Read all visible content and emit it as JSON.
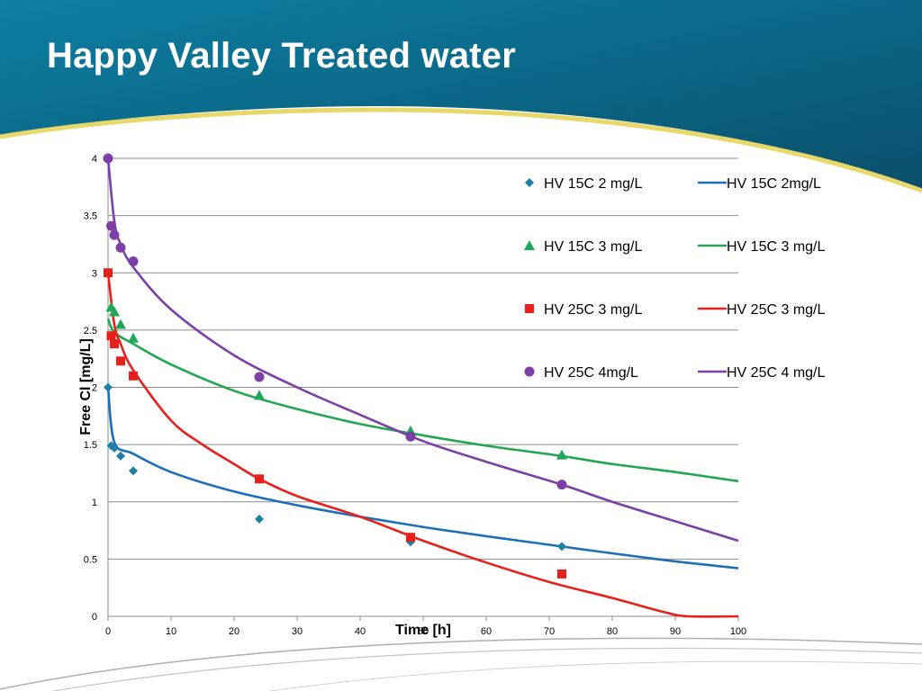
{
  "slide": {
    "title": "Happy Valley Treated water"
  },
  "theme": {
    "header_dark": "#0a4f6b",
    "header_mid": "#0d7fa3",
    "accent_yellow": "#e8d86a",
    "grid_color": "#8c8c8c"
  },
  "chart_data": {
    "type": "scatter",
    "xlabel": "Time [h]",
    "ylabel": "Free Cl [mg/L]",
    "xlim": [
      0,
      100
    ],
    "ylim": [
      0,
      4
    ],
    "xticks": [
      0,
      10,
      20,
      30,
      40,
      50,
      60,
      70,
      80,
      90,
      100
    ],
    "yticks": [
      0,
      0.5,
      1,
      1.5,
      2,
      2.5,
      3,
      3.5,
      4
    ],
    "ytick_labels": [
      "0",
      "0.5",
      "1",
      "1.5",
      "2",
      "2.5",
      "3",
      "3.5",
      "4"
    ],
    "grid": "horizontal",
    "legend_position": "top-right",
    "series": [
      {
        "name": "HV 15C 2 mg/L",
        "kind": "markers",
        "marker": "diamond",
        "color": "#1f7fa5",
        "points": [
          [
            0,
            2.0
          ],
          [
            0.5,
            1.49
          ],
          [
            1,
            1.47
          ],
          [
            2,
            1.4
          ],
          [
            4,
            1.27
          ],
          [
            24,
            0.85
          ],
          [
            48,
            0.65
          ],
          [
            72,
            0.61
          ]
        ]
      },
      {
        "name": "HV 15C  2mg/L",
        "kind": "line",
        "color": "#1d6fb8",
        "points": [
          [
            0,
            2.0
          ],
          [
            1,
            1.52
          ],
          [
            4,
            1.42
          ],
          [
            10,
            1.26
          ],
          [
            20,
            1.09
          ],
          [
            30,
            0.97
          ],
          [
            40,
            0.87
          ],
          [
            50,
            0.78
          ],
          [
            60,
            0.7
          ],
          [
            72,
            0.61
          ],
          [
            80,
            0.55
          ],
          [
            90,
            0.48
          ],
          [
            100,
            0.42
          ]
        ]
      },
      {
        "name": "HV 15C 3 mg/L",
        "kind": "markers",
        "marker": "triangle",
        "color": "#22a65a",
        "points": [
          [
            0.5,
            2.7
          ],
          [
            1,
            2.66
          ],
          [
            2,
            2.55
          ],
          [
            4,
            2.43
          ],
          [
            24,
            1.93
          ],
          [
            48,
            1.62
          ],
          [
            72,
            1.41
          ]
        ]
      },
      {
        "name": "HV 15C 3 mg/L",
        "kind": "line",
        "color": "#22a650",
        "points": [
          [
            0,
            2.6
          ],
          [
            1,
            2.48
          ],
          [
            4,
            2.38
          ],
          [
            10,
            2.2
          ],
          [
            20,
            1.97
          ],
          [
            30,
            1.81
          ],
          [
            40,
            1.68
          ],
          [
            50,
            1.58
          ],
          [
            60,
            1.49
          ],
          [
            72,
            1.4
          ],
          [
            80,
            1.33
          ],
          [
            90,
            1.26
          ],
          [
            100,
            1.18
          ]
        ]
      },
      {
        "name": "HV 25C 3 mg/L",
        "kind": "markers",
        "marker": "square",
        "color": "#e8201c",
        "points": [
          [
            0,
            3.0
          ],
          [
            0.5,
            2.45
          ],
          [
            1,
            2.38
          ],
          [
            2,
            2.23
          ],
          [
            4,
            2.1
          ],
          [
            24,
            1.2
          ],
          [
            48,
            0.69
          ],
          [
            72,
            0.37
          ]
        ]
      },
      {
        "name": "HV 25C 3 mg/L",
        "kind": "line",
        "color": "#e8201c",
        "points": [
          [
            0,
            3.0
          ],
          [
            1,
            2.55
          ],
          [
            2,
            2.38
          ],
          [
            4,
            2.15
          ],
          [
            10,
            1.71
          ],
          [
            15,
            1.5
          ],
          [
            20,
            1.33
          ],
          [
            24,
            1.2
          ],
          [
            30,
            1.05
          ],
          [
            40,
            0.87
          ],
          [
            50,
            0.66
          ],
          [
            60,
            0.47
          ],
          [
            70,
            0.3
          ],
          [
            80,
            0.16
          ],
          [
            88,
            0.04
          ],
          [
            92,
            0.0
          ],
          [
            100,
            0.0
          ]
        ]
      },
      {
        "name": "HV 25C 4mg/L",
        "kind": "markers",
        "marker": "circle",
        "color": "#7b3fa6",
        "points": [
          [
            0,
            4.0
          ],
          [
            0.5,
            3.41
          ],
          [
            1,
            3.33
          ],
          [
            2,
            3.22
          ],
          [
            4,
            3.1
          ],
          [
            24,
            2.09
          ],
          [
            48,
            1.57
          ],
          [
            72,
            1.15
          ]
        ]
      },
      {
        "name": "HV 25C 4 mg/L",
        "kind": "line",
        "color": "#7b3fa6",
        "points": [
          [
            0,
            4.0
          ],
          [
            1,
            3.45
          ],
          [
            2,
            3.25
          ],
          [
            4,
            3.05
          ],
          [
            10,
            2.68
          ],
          [
            20,
            2.28
          ],
          [
            30,
            2.0
          ],
          [
            40,
            1.76
          ],
          [
            50,
            1.53
          ],
          [
            60,
            1.35
          ],
          [
            72,
            1.15
          ],
          [
            80,
            1.0
          ],
          [
            90,
            0.83
          ],
          [
            100,
            0.66
          ]
        ]
      }
    ]
  }
}
